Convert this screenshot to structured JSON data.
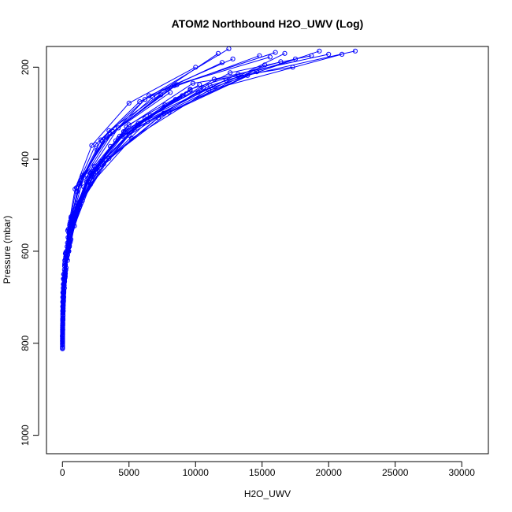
{
  "chart_data": {
    "type": "line",
    "title": "ATOM2 Northbound H2O_UWV (Log)",
    "xlabel": "H2O_UWV",
    "ylabel": "Pressure (mbar)",
    "xlim": [
      -1200,
      32000
    ],
    "ylim": [
      1040,
      155
    ],
    "y_reversed": true,
    "x_ticks": [
      0,
      5000,
      10000,
      15000,
      20000,
      25000,
      30000
    ],
    "y_ticks": [
      200,
      400,
      600,
      800,
      1000
    ],
    "marker": "open-circle",
    "series_color": "#0000ff",
    "series": [
      {
        "x": [
          5,
          15,
          40,
          90,
          220,
          480,
          1100,
          2600,
          6200,
          12500
        ],
        "y": [
          810,
          780,
          740,
          690,
          630,
          560,
          470,
          380,
          270,
          160
        ]
      },
      {
        "x": [
          8,
          25,
          60,
          150,
          380,
          900,
          2100,
          5200,
          11000,
          21000
        ],
        "y": [
          805,
          770,
          730,
          680,
          620,
          545,
          455,
          355,
          250,
          172
        ]
      },
      {
        "x": [
          10,
          20,
          50,
          120,
          300,
          700,
          1600,
          3800,
          8400,
          16000
        ],
        "y": [
          800,
          760,
          720,
          670,
          610,
          530,
          440,
          340,
          240,
          168
        ]
      },
      {
        "x": [
          6,
          30,
          80,
          200,
          520,
          1300,
          3100,
          7200,
          14600
        ],
        "y": [
          790,
          750,
          705,
          650,
          590,
          500,
          410,
          310,
          210
        ]
      },
      {
        "x": [
          12,
          35,
          90,
          210,
          480,
          1000,
          2200,
          4800,
          9800,
          17300
        ],
        "y": [
          775,
          740,
          700,
          655,
          600,
          520,
          430,
          330,
          235,
          200
        ]
      },
      {
        "x": [
          4,
          18,
          45,
          110,
          260,
          640,
          1500,
          3500,
          7900,
          14800
        ],
        "y": [
          785,
          752,
          712,
          662,
          602,
          528,
          438,
          338,
          248,
          175
        ]
      },
      {
        "x": [
          9,
          28,
          70,
          180,
          450,
          1100,
          2700,
          6200,
          13200
        ],
        "y": [
          770,
          735,
          695,
          645,
          585,
          505,
          415,
          312,
          215
        ]
      },
      {
        "x": [
          7,
          22,
          55,
          140,
          340,
          820,
          1900,
          4500,
          10200,
          19300
        ],
        "y": [
          795,
          758,
          718,
          668,
          612,
          535,
          448,
          350,
          255,
          165
        ]
      },
      {
        "x": [
          15,
          40,
          100,
          250,
          600,
          1400,
          3300,
          7600,
          16700
        ],
        "y": [
          765,
          728,
          690,
          640,
          578,
          495,
          402,
          300,
          170
        ]
      },
      {
        "x": [
          5,
          16,
          42,
          100,
          240,
          560,
          1300,
          3000,
          6800,
          11700
        ],
        "y": [
          798,
          762,
          722,
          672,
          615,
          540,
          452,
          362,
          265,
          170
        ]
      },
      {
        "x": [
          11,
          32,
          85,
          190,
          430,
          950,
          2000,
          4200,
          8600,
          15600
        ],
        "y": [
          780,
          745,
          708,
          658,
          598,
          518,
          428,
          332,
          238,
          178
        ]
      },
      {
        "x": [
          6,
          19,
          48,
          115,
          270,
          650,
          1500,
          3600,
          8100
        ],
        "y": [
          788,
          748,
          710,
          660,
          605,
          525,
          435,
          345,
          255
        ]
      },
      {
        "x": [
          14,
          38,
          95,
          230,
          560,
          1250,
          2900,
          6600,
          12600,
          18700
        ],
        "y": [
          768,
          732,
          692,
          642,
          582,
          498,
          405,
          305,
          212,
          175
        ]
      },
      {
        "x": [
          8,
          24,
          62,
          160,
          390,
          920,
          2200,
          5000,
          10600
        ],
        "y": [
          792,
          756,
          716,
          666,
          608,
          532,
          445,
          348,
          245
        ]
      },
      {
        "x": [
          10,
          27,
          66,
          170,
          400,
          980,
          2300,
          5600,
          12300,
          22000
        ],
        "y": [
          782,
          746,
          706,
          656,
          596,
          516,
          426,
          326,
          228,
          165
        ]
      },
      {
        "x": [
          3,
          12,
          30,
          80,
          190,
          450,
          1050,
          2500,
          5800,
          12000
        ],
        "y": [
          808,
          772,
          735,
          685,
          625,
          552,
          462,
          368,
          275,
          190
        ]
      },
      {
        "x": [
          13,
          36,
          92,
          220,
          520,
          1200,
          2800,
          6400,
          13900
        ],
        "y": [
          772,
          738,
          698,
          648,
          588,
          508,
          418,
          318,
          218
        ]
      },
      {
        "x": [
          9,
          26,
          64,
          155,
          370,
          880,
          2050,
          4700,
          9600,
          16400
        ],
        "y": [
          786,
          750,
          712,
          662,
          604,
          526,
          436,
          340,
          248,
          188
        ]
      },
      {
        "x": [
          7,
          21,
          52,
          130,
          320,
          770,
          1800,
          4200,
          9300
        ],
        "y": [
          796,
          762,
          724,
          674,
          616,
          538,
          450,
          355,
          258
        ]
      },
      {
        "x": [
          12,
          33,
          82,
          200,
          470,
          1080,
          2500,
          5700,
          11400,
          20000
        ],
        "y": [
          776,
          742,
          702,
          652,
          592,
          512,
          422,
          322,
          226,
          172
        ]
      },
      {
        "x": [
          4,
          14,
          38,
          95,
          230,
          540,
          1250,
          2900,
          6500,
          12800
        ],
        "y": [
          802,
          766,
          728,
          678,
          618,
          544,
          454,
          358,
          262,
          182
        ]
      },
      {
        "x": [
          16,
          44,
          110,
          270,
          640,
          1500,
          3500,
          8000,
          15200
        ],
        "y": [
          762,
          726,
          686,
          636,
          574,
          490,
          398,
          298,
          195
        ]
      },
      {
        "x": [
          6,
          17,
          46,
          105,
          250,
          600,
          1400,
          3300,
          7400
        ],
        "y": [
          794,
          758,
          720,
          670,
          612,
          535,
          446,
          352,
          260
        ]
      },
      {
        "x": [
          10,
          29,
          72,
          175,
          420,
          1000,
          2350,
          5400,
          11100,
          17500
        ],
        "y": [
          784,
          748,
          708,
          658,
          600,
          522,
          432,
          336,
          240,
          182
        ]
      },
      {
        "x": [
          3,
          10,
          28,
          70,
          170,
          400,
          950,
          2200,
          5000,
          10000
        ],
        "y": [
          812,
          775,
          738,
          688,
          628,
          555,
          465,
          370,
          278,
          200
        ]
      },
      {
        "x": [
          20,
          60,
          150,
          350,
          800,
          1800,
          4000,
          8500
        ],
        "y": [
          720,
          680,
          640,
          590,
          530,
          450,
          360,
          270
        ]
      },
      {
        "x": [
          25,
          70,
          180,
          420,
          950,
          2100,
          4600,
          9600
        ],
        "y": [
          700,
          660,
          620,
          570,
          510,
          430,
          340,
          250
        ]
      },
      {
        "x": [
          30,
          90,
          220,
          500,
          1100,
          2400,
          5000,
          10300
        ],
        "y": [
          690,
          650,
          605,
          555,
          495,
          415,
          325,
          238
        ]
      },
      {
        "x": [
          18,
          50,
          130,
          310,
          700,
          1600,
          3600,
          7700
        ],
        "y": [
          730,
          690,
          650,
          600,
          540,
          460,
          372,
          282
        ]
      },
      {
        "x": [
          22,
          65,
          160,
          380,
          860,
          1950,
          4300,
          9000
        ],
        "y": [
          710,
          672,
          632,
          582,
          520,
          440,
          350,
          262
        ]
      }
    ]
  }
}
